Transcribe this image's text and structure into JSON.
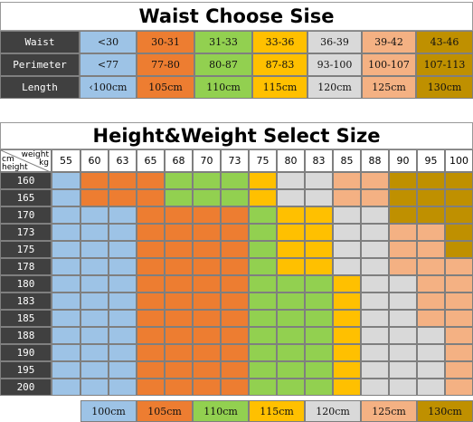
{
  "colors": {
    "dark": "#404040",
    "blue": "#9dc3e6",
    "orange": "#ed7d31",
    "green": "#92d050",
    "yellow": "#ffc000",
    "gray": "#d9d9d9",
    "peach": "#f4b183",
    "brown": "#bf9000"
  },
  "waist_table": {
    "title": "Waist Choose Sise",
    "column_colors": [
      "blue",
      "orange",
      "green",
      "yellow",
      "gray",
      "peach",
      "brown"
    ],
    "rows": [
      {
        "label": "Waist",
        "values": [
          "<30",
          "30-31",
          "31-33",
          "33-36",
          "36-39",
          "39-42",
          "43-46"
        ]
      },
      {
        "label": "Perimeter",
        "values": [
          "<77",
          "77-80",
          "80-87",
          "87-83",
          "93-100",
          "100-107",
          "107-113"
        ]
      },
      {
        "label": "Length",
        "values": [
          "‹100cm",
          "105cm",
          "110cm",
          "115cm",
          "120cm",
          "125cm",
          "130cm"
        ]
      }
    ]
  },
  "size_table": {
    "title": "Height&Weight Select Size",
    "corner": {
      "weight": "weight",
      "kg": "kg",
      "cm": "cm",
      "height": "height"
    },
    "weights": [
      "55",
      "60",
      "63",
      "65",
      "68",
      "70",
      "73",
      "75",
      "80",
      "83",
      "85",
      "88",
      "90",
      "95",
      "100"
    ],
    "heights": [
      "160",
      "165",
      "170",
      "173",
      "175",
      "178",
      "180",
      "183",
      "185",
      "188",
      "190",
      "195",
      "200"
    ],
    "grid": [
      [
        "blue",
        "orange",
        "orange",
        "orange",
        "green",
        "green",
        "green",
        "yellow",
        "gray",
        "gray",
        "peach",
        "peach",
        "brown",
        "brown",
        "brown"
      ],
      [
        "blue",
        "orange",
        "orange",
        "orange",
        "green",
        "green",
        "green",
        "yellow",
        "gray",
        "gray",
        "peach",
        "peach",
        "brown",
        "brown",
        "brown"
      ],
      [
        "blue",
        "blue",
        "blue",
        "orange",
        "orange",
        "orange",
        "orange",
        "green",
        "yellow",
        "yellow",
        "gray",
        "gray",
        "brown",
        "brown",
        "brown"
      ],
      [
        "blue",
        "blue",
        "blue",
        "orange",
        "orange",
        "orange",
        "orange",
        "green",
        "yellow",
        "yellow",
        "gray",
        "gray",
        "peach",
        "peach",
        "brown"
      ],
      [
        "blue",
        "blue",
        "blue",
        "orange",
        "orange",
        "orange",
        "orange",
        "green",
        "yellow",
        "yellow",
        "gray",
        "gray",
        "peach",
        "peach",
        "brown"
      ],
      [
        "blue",
        "blue",
        "blue",
        "orange",
        "orange",
        "orange",
        "orange",
        "green",
        "yellow",
        "yellow",
        "gray",
        "gray",
        "peach",
        "peach",
        "peach"
      ],
      [
        "blue",
        "blue",
        "blue",
        "orange",
        "orange",
        "orange",
        "orange",
        "green",
        "green",
        "green",
        "yellow",
        "gray",
        "gray",
        "peach",
        "peach"
      ],
      [
        "blue",
        "blue",
        "blue",
        "orange",
        "orange",
        "orange",
        "orange",
        "green",
        "green",
        "green",
        "yellow",
        "gray",
        "gray",
        "peach",
        "peach"
      ],
      [
        "blue",
        "blue",
        "blue",
        "orange",
        "orange",
        "orange",
        "orange",
        "green",
        "green",
        "green",
        "yellow",
        "gray",
        "gray",
        "peach",
        "peach"
      ],
      [
        "blue",
        "blue",
        "blue",
        "orange",
        "orange",
        "orange",
        "orange",
        "green",
        "green",
        "green",
        "yellow",
        "gray",
        "gray",
        "gray",
        "peach"
      ],
      [
        "blue",
        "blue",
        "blue",
        "orange",
        "orange",
        "orange",
        "orange",
        "green",
        "green",
        "green",
        "yellow",
        "gray",
        "gray",
        "gray",
        "peach"
      ],
      [
        "blue",
        "blue",
        "blue",
        "orange",
        "orange",
        "orange",
        "orange",
        "green",
        "green",
        "green",
        "yellow",
        "gray",
        "gray",
        "gray",
        "peach"
      ],
      [
        "blue",
        "blue",
        "blue",
        "orange",
        "orange",
        "orange",
        "orange",
        "green",
        "green",
        "green",
        "yellow",
        "gray",
        "gray",
        "gray",
        "peach"
      ]
    ],
    "legend": [
      {
        "label": "100cm",
        "color": "blue"
      },
      {
        "label": "105cm",
        "color": "orange"
      },
      {
        "label": "110cm",
        "color": "green"
      },
      {
        "label": "115cm",
        "color": "yellow"
      },
      {
        "label": "120cm",
        "color": "gray"
      },
      {
        "label": "125cm",
        "color": "peach"
      },
      {
        "label": "130cm",
        "color": "brown"
      }
    ]
  }
}
